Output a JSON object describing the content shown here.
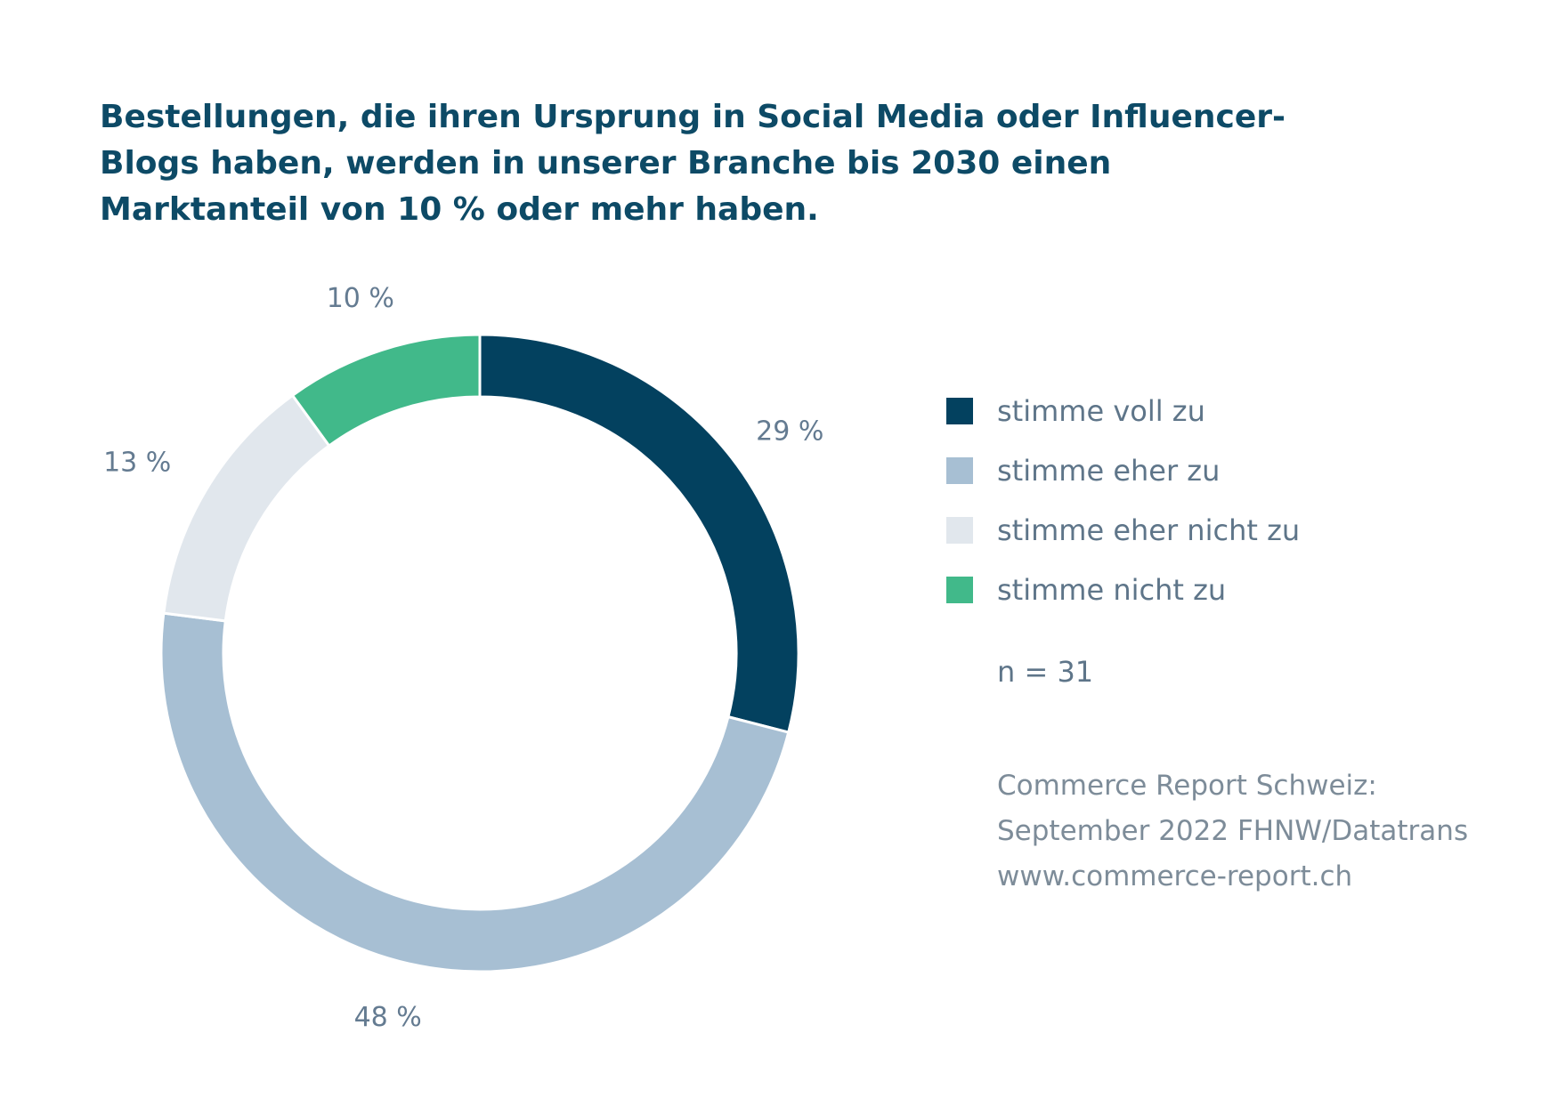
{
  "title_lines": [
    "Bestellungen, die ihren Ursprung in Social Media oder Influencer-",
    "Blogs haben, werden in unserer Branche bis 2030 einen",
    "Marktanteil von 10 % oder mehr haben."
  ],
  "chart_data": {
    "type": "pie",
    "variant": "donut",
    "title": "Bestellungen, die ihren Ursprung in Social Media oder Influencer-Blogs haben, werden in unserer Branche bis 2030 einen Marktanteil von 10 % oder mehr haben.",
    "categories": [
      "stimme voll zu",
      "stimme eher zu",
      "stimme eher nicht zu",
      "stimme nicht zu"
    ],
    "values": [
      29,
      48,
      13,
      10
    ],
    "value_labels": [
      "29 %",
      "48 %",
      "13 %",
      "10 %"
    ],
    "colors": [
      "#03415f",
      "#a7bfd3",
      "#e1e7ed",
      "#41b98a"
    ],
    "legend_position": "right",
    "start": "top, clockwise"
  },
  "sample_size": "n = 31",
  "source_lines": [
    "Commerce Report Schweiz:",
    "September 2022 FHNW/Datatrans",
    "www.commerce-report.ch"
  ]
}
